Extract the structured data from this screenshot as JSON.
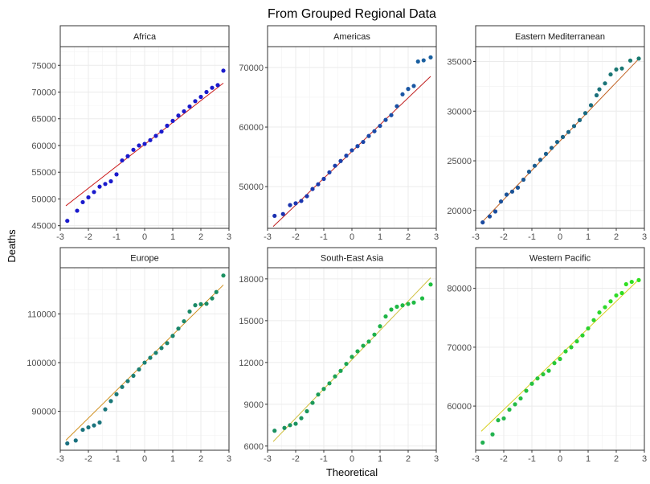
{
  "chart_data": {
    "type": "scatter",
    "subtype": "qq-plot",
    "title": "From Grouped Regional Data",
    "xlabel": "Theoretical",
    "ylabel": "Deaths",
    "grid": true,
    "xlim": [
      -3,
      3
    ],
    "x_ticks": [
      -3,
      -2,
      -1,
      0,
      1,
      2,
      3
    ],
    "panels": [
      {
        "name": "Africa",
        "ylim": [
          44500,
          78500
        ],
        "y_ticks": [
          45000,
          50000,
          55000,
          60000,
          65000,
          70000,
          75000
        ],
        "y_tick_labels": [
          "45000",
          "50000",
          "55000",
          "60000",
          "65000",
          "70000",
          "75000"
        ],
        "line": {
          "intercept": 60200,
          "slope": 4100,
          "color": "#cc1a1a"
        },
        "point_color_low": "#1a1acc",
        "point_color_high": "#1a1acc",
        "qq_points": [
          [
            -2.75,
            45900
          ],
          [
            -2.4,
            47800
          ],
          [
            -2.2,
            49400
          ],
          [
            -2.0,
            50300
          ],
          [
            -1.8,
            51300
          ],
          [
            -1.6,
            52300
          ],
          [
            -1.4,
            52800
          ],
          [
            -1.2,
            53300
          ],
          [
            -1.0,
            54600
          ],
          [
            -0.8,
            57200
          ],
          [
            -0.6,
            58000
          ],
          [
            -0.4,
            59200
          ],
          [
            -0.2,
            60000
          ],
          [
            0.0,
            60300
          ],
          [
            0.2,
            61000
          ],
          [
            0.4,
            61800
          ],
          [
            0.6,
            62600
          ],
          [
            0.8,
            63700
          ],
          [
            1.0,
            64600
          ],
          [
            1.2,
            65600
          ],
          [
            1.4,
            66400
          ],
          [
            1.6,
            67300
          ],
          [
            1.8,
            68300
          ],
          [
            2.0,
            69100
          ],
          [
            2.2,
            70000
          ],
          [
            2.4,
            70800
          ],
          [
            2.6,
            71300
          ],
          [
            2.8,
            74000
          ]
        ]
      },
      {
        "name": "Americas",
        "ylim": [
          43000,
          73500
        ],
        "y_ticks": [
          50000,
          60000,
          70000
        ],
        "y_tick_labels": [
          "50000",
          "60000",
          "70000"
        ],
        "line": {
          "intercept": 55900,
          "slope": 4500,
          "color": "#c02020"
        },
        "point_color_low": "#1a30b0",
        "point_color_high": "#1a60a0",
        "qq_points": [
          [
            -2.75,
            45100
          ],
          [
            -2.45,
            45400
          ],
          [
            -2.2,
            46900
          ],
          [
            -2.0,
            47200
          ],
          [
            -1.8,
            47600
          ],
          [
            -1.6,
            48400
          ],
          [
            -1.4,
            49600
          ],
          [
            -1.2,
            50400
          ],
          [
            -1.0,
            51300
          ],
          [
            -0.8,
            52400
          ],
          [
            -0.6,
            53500
          ],
          [
            -0.4,
            54300
          ],
          [
            -0.2,
            55200
          ],
          [
            0.0,
            56100
          ],
          [
            0.2,
            56800
          ],
          [
            0.4,
            57500
          ],
          [
            0.6,
            58500
          ],
          [
            0.8,
            59300
          ],
          [
            1.0,
            60200
          ],
          [
            1.2,
            61200
          ],
          [
            1.4,
            62000
          ],
          [
            1.6,
            63500
          ],
          [
            1.8,
            65500
          ],
          [
            2.0,
            66400
          ],
          [
            2.2,
            66900
          ],
          [
            2.35,
            71000
          ],
          [
            2.55,
            71200
          ],
          [
            2.8,
            71700
          ]
        ]
      },
      {
        "name": "Eastern Mediterranean",
        "ylim": [
          18200,
          36500
        ],
        "y_ticks": [
          20000,
          25000,
          30000,
          35000
        ],
        "y_tick_labels": [
          "20000",
          "25000",
          "30000",
          "35000"
        ],
        "line": {
          "intercept": 27000,
          "slope": 2950,
          "color": "#c06020"
        },
        "point_color_low": "#1a4aa0",
        "point_color_high": "#1a7a70",
        "qq_points": [
          [
            -2.75,
            18800
          ],
          [
            -2.5,
            19400
          ],
          [
            -2.3,
            19900
          ],
          [
            -2.1,
            20900
          ],
          [
            -1.9,
            21600
          ],
          [
            -1.7,
            21900
          ],
          [
            -1.5,
            22300
          ],
          [
            -1.3,
            23100
          ],
          [
            -1.1,
            23900
          ],
          [
            -0.9,
            24500
          ],
          [
            -0.7,
            25100
          ],
          [
            -0.5,
            25700
          ],
          [
            -0.3,
            26300
          ],
          [
            -0.1,
            26900
          ],
          [
            0.1,
            27400
          ],
          [
            0.3,
            27900
          ],
          [
            0.5,
            28500
          ],
          [
            0.7,
            29100
          ],
          [
            0.9,
            29800
          ],
          [
            1.1,
            30600
          ],
          [
            1.3,
            31600
          ],
          [
            1.4,
            32200
          ],
          [
            1.6,
            32800
          ],
          [
            1.8,
            33700
          ],
          [
            2.0,
            34200
          ],
          [
            2.2,
            34300
          ],
          [
            2.5,
            35100
          ],
          [
            2.8,
            35300
          ]
        ]
      },
      {
        "name": "Europe",
        "ylim": [
          82000,
          119500
        ],
        "y_ticks": [
          90000,
          100000,
          110000
        ],
        "y_tick_labels": [
          "90000",
          "100000",
          "110000"
        ],
        "line": {
          "intercept": 100000,
          "slope": 5700,
          "color": "#d09020"
        },
        "point_color_low": "#1a7080",
        "point_color_high": "#1a9060",
        "qq_points": [
          [
            -2.75,
            83400
          ],
          [
            -2.45,
            84000
          ],
          [
            -2.2,
            86200
          ],
          [
            -2.0,
            86700
          ],
          [
            -1.8,
            87100
          ],
          [
            -1.6,
            87700
          ],
          [
            -1.4,
            90400
          ],
          [
            -1.2,
            92100
          ],
          [
            -1.0,
            93500
          ],
          [
            -0.8,
            95000
          ],
          [
            -0.6,
            96200
          ],
          [
            -0.4,
            97300
          ],
          [
            -0.2,
            98600
          ],
          [
            0.0,
            100000
          ],
          [
            0.2,
            101000
          ],
          [
            0.4,
            102000
          ],
          [
            0.6,
            103000
          ],
          [
            0.8,
            104000
          ],
          [
            1.0,
            105500
          ],
          [
            1.2,
            107000
          ],
          [
            1.4,
            108500
          ],
          [
            1.6,
            110500
          ],
          [
            1.8,
            111800
          ],
          [
            2.0,
            112000
          ],
          [
            2.2,
            112100
          ],
          [
            2.4,
            113200
          ],
          [
            2.55,
            114500
          ],
          [
            2.8,
            117900
          ]
        ]
      },
      {
        "name": "South-East Asia",
        "ylim": [
          5700,
          18800
        ],
        "y_ticks": [
          6000,
          9000,
          12000,
          15000,
          18000
        ],
        "y_tick_labels": [
          "6000",
          "9000",
          "12000",
          "15000",
          "18000"
        ],
        "line": {
          "intercept": 12200,
          "slope": 2100,
          "color": "#d0c040"
        },
        "point_color_low": "#1a9060",
        "point_color_high": "#20c040",
        "qq_points": [
          [
            -2.75,
            7100
          ],
          [
            -2.4,
            7300
          ],
          [
            -2.2,
            7500
          ],
          [
            -2.0,
            7600
          ],
          [
            -1.8,
            8000
          ],
          [
            -1.6,
            8500
          ],
          [
            -1.4,
            9100
          ],
          [
            -1.2,
            9700
          ],
          [
            -1.0,
            10100
          ],
          [
            -0.8,
            10500
          ],
          [
            -0.6,
            11000
          ],
          [
            -0.4,
            11400
          ],
          [
            -0.2,
            11900
          ],
          [
            0.0,
            12400
          ],
          [
            0.2,
            12800
          ],
          [
            0.4,
            13200
          ],
          [
            0.6,
            13500
          ],
          [
            0.8,
            14000
          ],
          [
            1.0,
            14600
          ],
          [
            1.2,
            15300
          ],
          [
            1.4,
            15800
          ],
          [
            1.6,
            16000
          ],
          [
            1.8,
            16100
          ],
          [
            2.0,
            16200
          ],
          [
            2.2,
            16300
          ],
          [
            2.5,
            16600
          ],
          [
            2.8,
            17600
          ]
        ]
      },
      {
        "name": "Western Pacific",
        "ylim": [
          52500,
          83500
        ],
        "y_ticks": [
          60000,
          70000,
          80000
        ],
        "y_tick_labels": [
          "60000",
          "70000",
          "80000"
        ],
        "line": {
          "intercept": 68600,
          "slope": 4600,
          "color": "#d8d020"
        },
        "point_color_low": "#20b050",
        "point_color_high": "#30e020",
        "qq_points": [
          [
            -2.75,
            53800
          ],
          [
            -2.4,
            55200
          ],
          [
            -2.2,
            57600
          ],
          [
            -2.0,
            57900
          ],
          [
            -1.8,
            59400
          ],
          [
            -1.6,
            60300
          ],
          [
            -1.4,
            61300
          ],
          [
            -1.2,
            62600
          ],
          [
            -1.0,
            63800
          ],
          [
            -0.8,
            64700
          ],
          [
            -0.6,
            65400
          ],
          [
            -0.4,
            66000
          ],
          [
            -0.2,
            67300
          ],
          [
            0.0,
            68000
          ],
          [
            0.2,
            69300
          ],
          [
            0.4,
            70000
          ],
          [
            0.6,
            71000
          ],
          [
            0.8,
            72000
          ],
          [
            1.0,
            73200
          ],
          [
            1.2,
            74600
          ],
          [
            1.4,
            75900
          ],
          [
            1.6,
            76800
          ],
          [
            1.8,
            77800
          ],
          [
            2.0,
            78800
          ],
          [
            2.2,
            79200
          ],
          [
            2.35,
            80700
          ],
          [
            2.55,
            81100
          ],
          [
            2.8,
            81400
          ]
        ]
      }
    ]
  }
}
